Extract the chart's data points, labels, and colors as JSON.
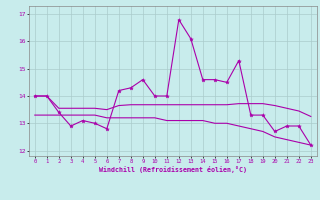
{
  "xlabel": "Windchill (Refroidissement éolien,°C)",
  "background_color": "#c8ecec",
  "grid_color": "#aacccc",
  "line_color": "#aa00aa",
  "x": [
    0,
    1,
    2,
    3,
    4,
    5,
    6,
    7,
    8,
    9,
    10,
    11,
    12,
    13,
    14,
    15,
    16,
    17,
    18,
    19,
    20,
    21,
    22,
    23
  ],
  "series1": [
    14.0,
    14.0,
    13.4,
    12.9,
    13.1,
    13.0,
    12.8,
    14.2,
    14.3,
    14.6,
    14.0,
    14.0,
    16.8,
    16.1,
    14.6,
    14.6,
    14.5,
    15.3,
    13.3,
    13.3,
    12.7,
    12.9,
    12.9,
    12.2
  ],
  "series2": [
    14.0,
    14.0,
    13.55,
    13.55,
    13.55,
    13.55,
    13.5,
    13.65,
    13.68,
    13.68,
    13.68,
    13.68,
    13.68,
    13.68,
    13.68,
    13.68,
    13.68,
    13.72,
    13.72,
    13.72,
    13.65,
    13.55,
    13.45,
    13.25
  ],
  "series3": [
    13.3,
    13.3,
    13.3,
    13.3,
    13.3,
    13.3,
    13.2,
    13.2,
    13.2,
    13.2,
    13.2,
    13.1,
    13.1,
    13.1,
    13.1,
    13.0,
    13.0,
    12.9,
    12.8,
    12.7,
    12.5,
    12.4,
    12.3,
    12.2
  ],
  "ylim": [
    11.8,
    17.3
  ],
  "yticks": [
    12,
    13,
    14,
    15,
    16,
    17
  ],
  "xlim": [
    -0.5,
    23.5
  ],
  "xticks": [
    0,
    1,
    2,
    3,
    4,
    5,
    6,
    7,
    8,
    9,
    10,
    11,
    12,
    13,
    14,
    15,
    16,
    17,
    18,
    19,
    20,
    21,
    22,
    23
  ]
}
